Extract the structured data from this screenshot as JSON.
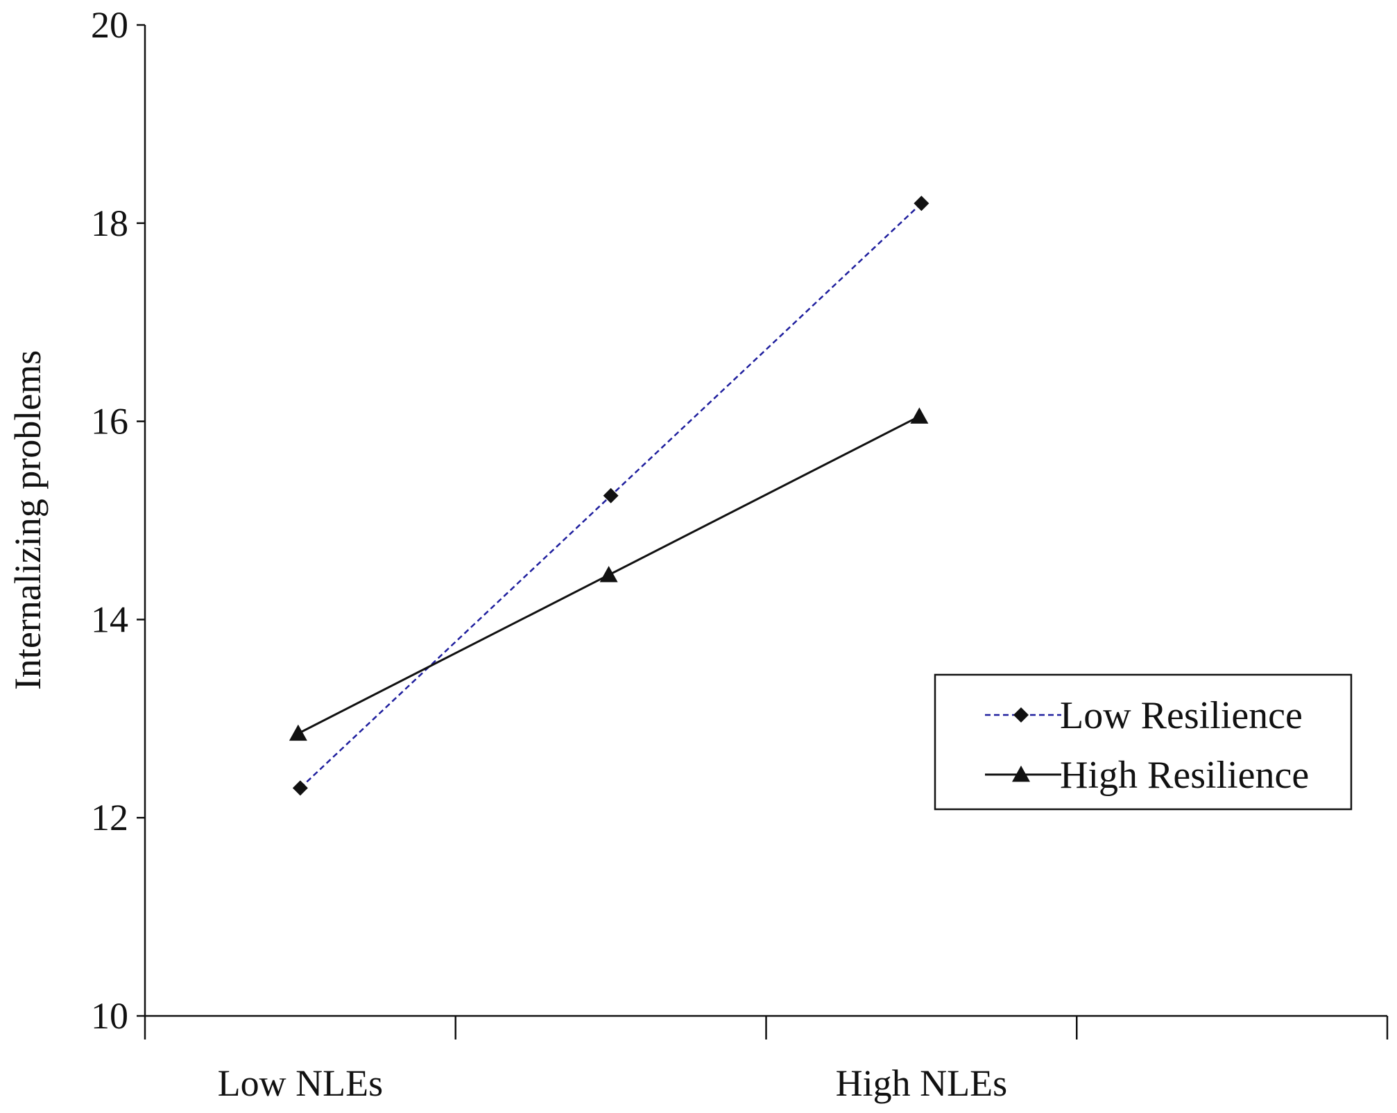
{
  "chart_data": {
    "type": "line",
    "title": "",
    "xlabel": "",
    "ylabel": "Internalizing problems",
    "ylim": [
      10,
      20
    ],
    "yticks": [
      10,
      12,
      14,
      16,
      18,
      20
    ],
    "x_tick_labels": [
      "Low NLEs",
      "High NLEs"
    ],
    "grid": false,
    "legend_position": "right",
    "series": [
      {
        "name": "Low Resilience",
        "color": "#1f1f9e",
        "line_style": "dashed",
        "marker": "diamond",
        "values": [
          12.3,
          15.25,
          18.2
        ]
      },
      {
        "name": "High Resilience",
        "color": "#111111",
        "line_style": "solid",
        "marker": "triangle",
        "values": [
          12.85,
          14.45,
          16.05
        ]
      }
    ]
  }
}
